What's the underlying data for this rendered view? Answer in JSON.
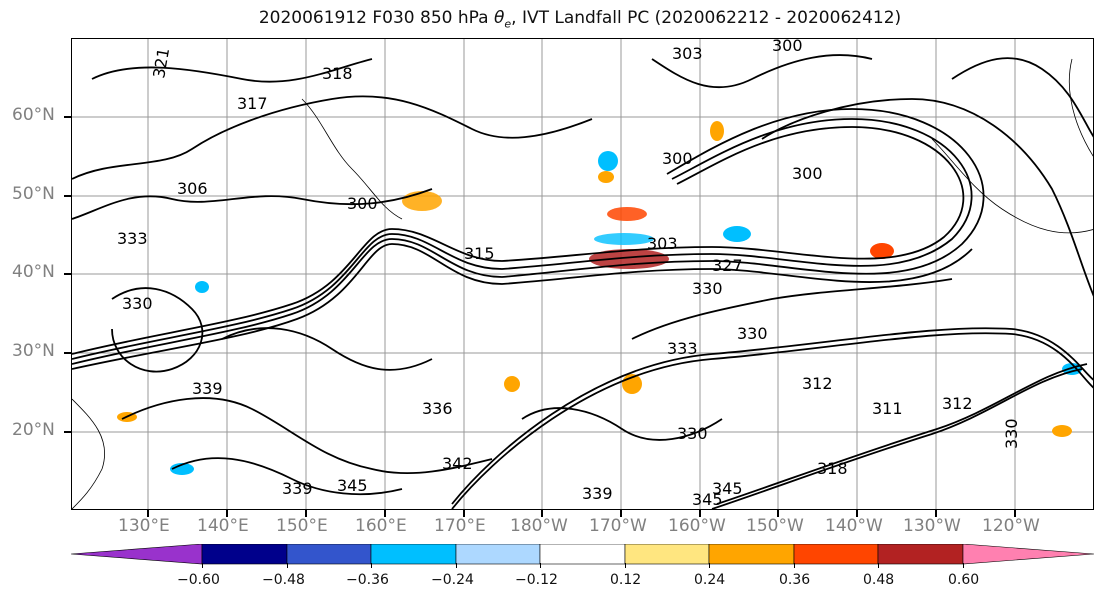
{
  "title": "2020061912 F030 850 hPa θe, IVT Landfall PC (2020062212 - 2020062412)",
  "title_prefix": "2020061912 F030 850 hPa ",
  "title_symbol": "θ",
  "title_subscript": "e",
  "title_suffix": ", IVT Landfall PC (2020062212 - 2020062412)",
  "map": {
    "latitude_labels": [
      "60°N",
      "50°N",
      "40°N",
      "30°N",
      "20°N"
    ],
    "longitude_labels": [
      "130°E",
      "140°E",
      "150°E",
      "160°E",
      "170°E",
      "180°W",
      "170°W",
      "160°W",
      "150°W",
      "140°W",
      "130°W",
      "120°W"
    ],
    "contour_labels": [
      "321",
      "318",
      "317",
      "306",
      "300",
      "303",
      "300",
      "300",
      "300",
      "303",
      "315",
      "333",
      "330",
      "327",
      "330",
      "330",
      "333",
      "312",
      "311",
      "312",
      "318",
      "339",
      "336",
      "342",
      "339",
      "345",
      "339",
      "345",
      "330",
      "345",
      "330"
    ]
  },
  "colorbar": {
    "ticks": [
      "−0.60",
      "−0.48",
      "−0.36",
      "−0.24",
      "−0.12",
      "0.12",
      "0.24",
      "0.36",
      "0.48",
      "0.60"
    ],
    "colors": [
      "#9932cc",
      "#00008b",
      "#3355cc",
      "#00bfff",
      "#add8ff",
      "#ffffff",
      "#ffe680",
      "#ffa500",
      "#ff4500",
      "#b22222",
      "#ff80b0"
    ]
  }
}
